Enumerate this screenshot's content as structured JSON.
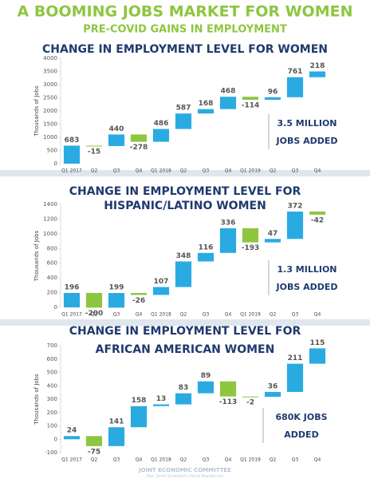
{
  "title": "A BOOMING JOBS MARKET FOR WOMEN",
  "subtitle": "PRE-COVID GAINS IN EMPLOYMENT",
  "footer": {
    "org": "JOINT ECONOMIC COMMITTEE",
    "sub": "Rep. David Schweikert, House Republicans"
  },
  "chart_data": [
    {
      "type": "waterfall",
      "title": [
        "CHANGE IN EMPLOYMENT LEVEL FOR WOMEN"
      ],
      "y_label": "Thousands of Jobs",
      "categories": [
        "Q1 2017",
        "Q2",
        "Q3",
        "Q4",
        "Q1 2018",
        "Q2",
        "Q3",
        "Q4",
        "Q1 2019",
        "Q2",
        "Q3",
        "Q4"
      ],
      "values": [
        683,
        -15,
        440,
        -278,
        486,
        587,
        168,
        468,
        -114,
        96,
        761,
        218
      ],
      "increase_color": "#29abe2",
      "decrease_color": "#8dc63f",
      "ylim": [
        0,
        4000
      ],
      "yticks": [
        0,
        500,
        1000,
        1500,
        2000,
        2500,
        3000,
        3500,
        4000
      ],
      "annotation": [
        "3.5 MILLION",
        "JOBS ADDED"
      ]
    },
    {
      "type": "waterfall",
      "title": [
        "CHANGE IN EMPLOYMENT LEVEL FOR",
        "HISPANIC/LATINO WOMEN"
      ],
      "y_label": "Thousands of Jobs",
      "categories": [
        "Q1 2017",
        "Q2",
        "Q3",
        "Q4",
        "Q1 2018",
        "Q2",
        "Q3",
        "Q4",
        "Q1 2019",
        "Q2",
        "Q3",
        "Q4"
      ],
      "values": [
        196,
        -200,
        199,
        -26,
        107,
        348,
        116,
        336,
        -193,
        47,
        372,
        -42
      ],
      "increase_color": "#29abe2",
      "decrease_color": "#8dc63f",
      "ylim": [
        0,
        1400
      ],
      "yticks": [
        0,
        200,
        400,
        600,
        800,
        1000,
        1200,
        1400
      ],
      "annotation": [
        "1.3 MILLION",
        "JOBS ADDED"
      ]
    },
    {
      "type": "waterfall",
      "title": [
        "CHANGE IN EMPLOYMENT LEVEL FOR",
        "AFRICAN AMERICAN WOMEN"
      ],
      "y_label": "Thousands of Jobs",
      "categories": [
        "Q1 2017",
        "Q2",
        "Q3",
        "Q4",
        "Q1 2018",
        "Q2",
        "Q3",
        "Q4",
        "Q1 2019",
        "Q2",
        "Q3",
        "Q4"
      ],
      "values": [
        24,
        -75,
        141,
        158,
        13,
        83,
        89,
        -113,
        -2,
        36,
        211,
        115
      ],
      "increase_color": "#29abe2",
      "decrease_color": "#8dc63f",
      "ylim": [
        -100,
        700
      ],
      "yticks": [
        -100,
        0,
        100,
        200,
        300,
        400,
        500,
        600,
        700
      ],
      "annotation": [
        "680K JOBS",
        "ADDED"
      ]
    }
  ]
}
